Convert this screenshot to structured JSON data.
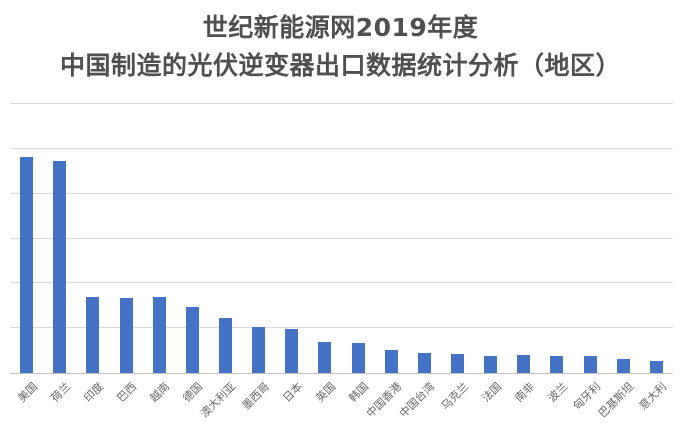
{
  "title": {
    "line1": "世纪新能源网2019年度",
    "line2": "中国制造的光伏逆变器出口数据统计分析（地区）"
  },
  "chart_data": {
    "type": "bar",
    "title": "世纪新能源网2019年度 中国制造的光伏逆变器出口数据统计分析（地区）",
    "categories": [
      "美国",
      "荷兰",
      "印度",
      "巴西",
      "越南",
      "德国",
      "澳大利亚",
      "墨西哥",
      "日本",
      "英国",
      "韩国",
      "中国香港",
      "中国台湾",
      "乌克兰",
      "法国",
      "南非",
      "波兰",
      "匈牙利",
      "巴基斯坦",
      "意大利"
    ],
    "values_relative_units": [
      4.82,
      4.73,
      1.7,
      1.68,
      1.69,
      1.47,
      1.23,
      1.03,
      0.98,
      0.69,
      0.66,
      0.51,
      0.44,
      0.42,
      0.39,
      0.4,
      0.39,
      0.38,
      0.32,
      0.27
    ],
    "value_axis": {
      "tick_labels_visible": false,
      "min": 0,
      "max": 6,
      "gridline_intervals": 6
    },
    "xlabel": "",
    "ylabel": "",
    "legend": "none",
    "grid": "horizontal",
    "x_label_rotation_deg": 45
  },
  "colors": {
    "bar": "#4472c4",
    "gridline": "#d9d9d9",
    "axis_line": "#c2c2c2",
    "title_text": "#4f4f4f",
    "axis_label_text": "#666666",
    "background": "#ffffff"
  }
}
